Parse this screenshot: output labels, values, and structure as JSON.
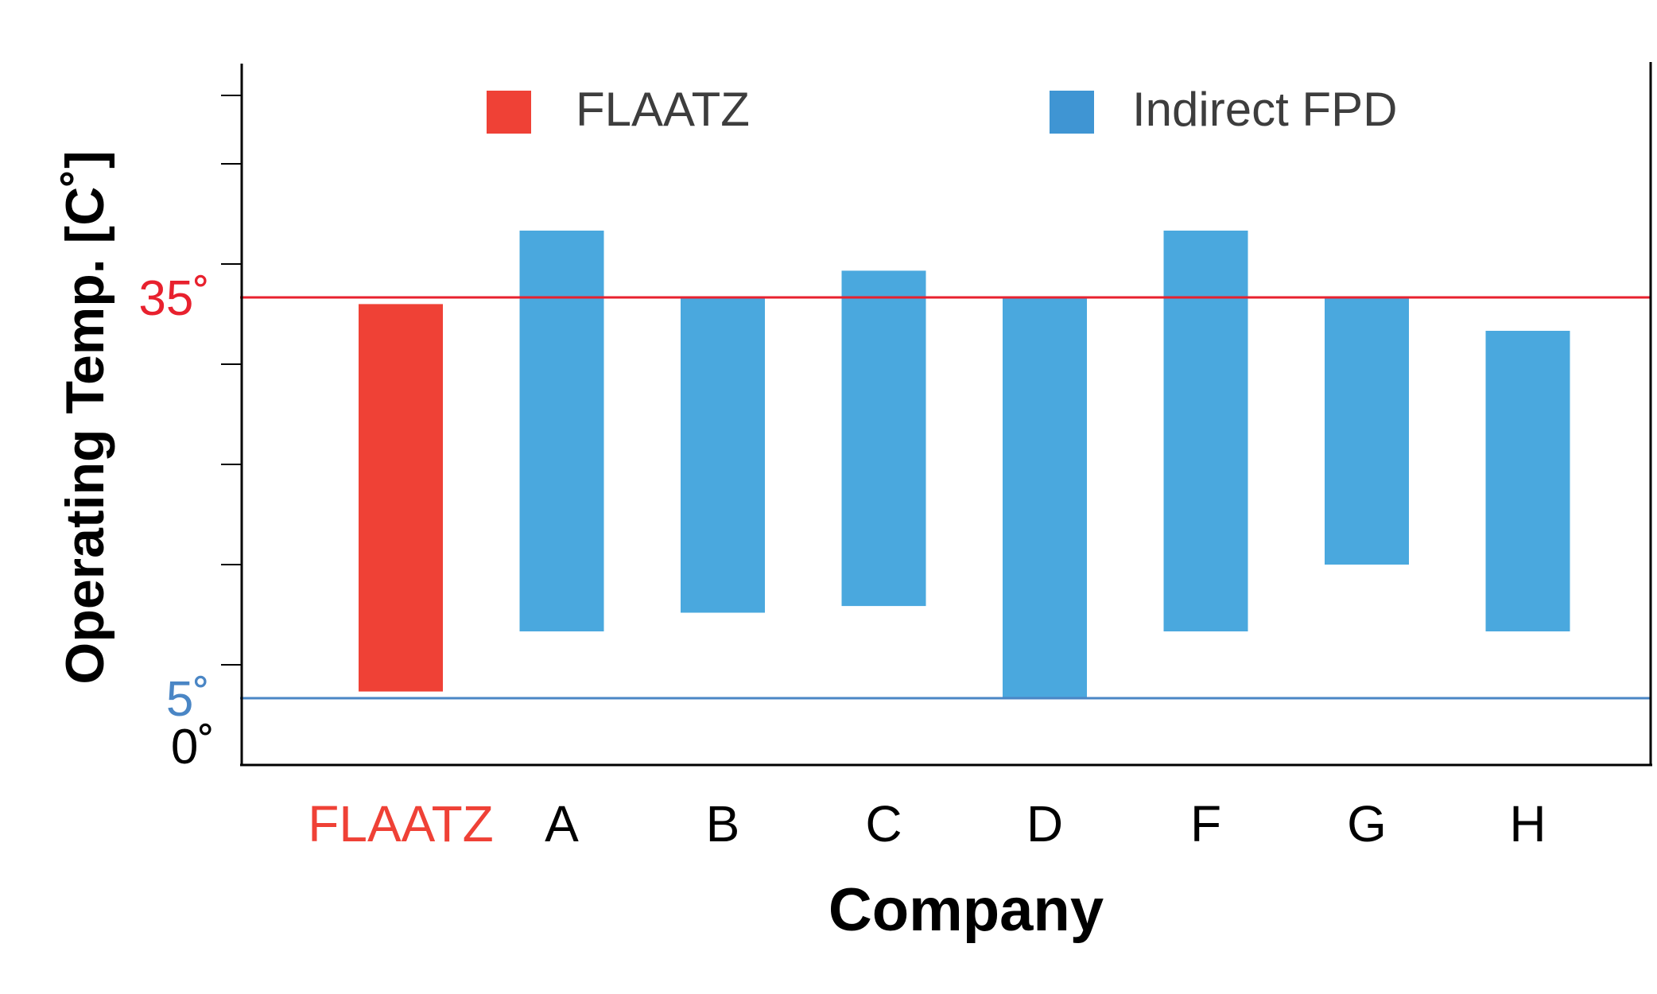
{
  "chart_data": {
    "type": "bar",
    "subtype": "floating-range",
    "categories": [
      "FLAATZ",
      "A",
      "B",
      "C",
      "D",
      "F",
      "G",
      "H"
    ],
    "series": [
      {
        "name": "FLAATZ",
        "color": "#ef4136",
        "ranges": [
          [
            5.5,
            34.5
          ]
        ],
        "categories": [
          "FLAATZ"
        ]
      },
      {
        "name": "Indirect FPD",
        "color": "#4aa8de",
        "ranges": [
          [
            10,
            40
          ],
          [
            11.4,
            35
          ],
          [
            11.9,
            37
          ],
          [
            5,
            35
          ],
          [
            10,
            40
          ],
          [
            15,
            35
          ],
          [
            10,
            32.5
          ]
        ],
        "categories": [
          "A",
          "B",
          "C",
          "D",
          "F",
          "G",
          "H"
        ]
      }
    ],
    "xlabel": "Company",
    "ylabel": "Operating Temp. [C˚]",
    "ylim": [
      0,
      52.5
    ],
    "reference_lines": [
      {
        "value": 35,
        "label": "35˚",
        "color": "#e8212e"
      },
      {
        "value": 5,
        "label": "5˚",
        "color": "#4a86c5"
      }
    ],
    "axis_labels": [
      {
        "value": 0,
        "label": "0˚",
        "color": "#000000"
      }
    ],
    "grid": false,
    "legend": {
      "position": "top",
      "entries": [
        {
          "label": "FLAATZ",
          "color": "#ef4136"
        },
        {
          "label": "Indirect FPD",
          "color": "#3f95d3"
        }
      ]
    },
    "category_label_colors": {
      "FLAATZ": "#ef4136",
      "default": "#000000"
    }
  }
}
